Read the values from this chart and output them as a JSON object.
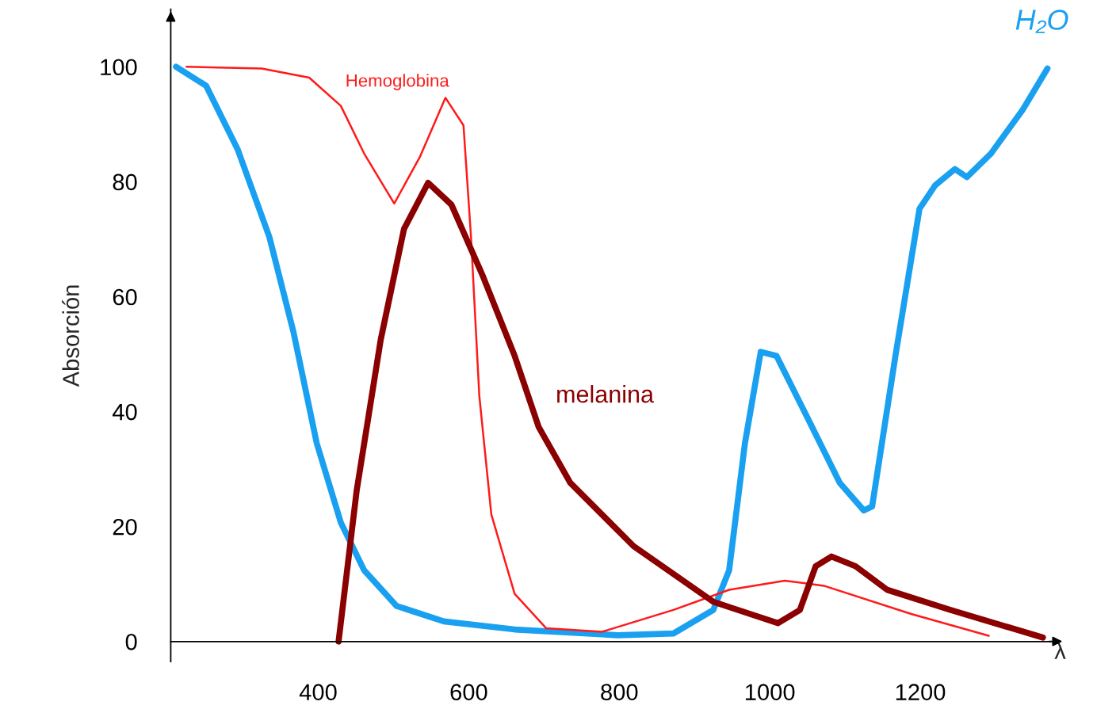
{
  "chart_data": {
    "type": "line",
    "ylabel": "Absorción",
    "xlabel": "λ",
    "xlim": [
      204,
      1380
    ],
    "ylim": [
      -3.5,
      110
    ],
    "xticks": [
      400,
      600,
      800,
      1000,
      1200
    ],
    "yticks": [
      0,
      20,
      40,
      60,
      80,
      100
    ],
    "grid": false,
    "legend": false,
    "marker": "none",
    "line_style": "solid",
    "series": [
      {
        "name": "H₂O",
        "color": "#1aa0f0",
        "x": [
          211,
          251,
          293,
          335,
          367,
          398,
          430,
          461,
          504,
          567,
          661,
          798,
          872,
          925,
          946,
          967,
          988,
          1009,
          1051,
          1093,
          1125,
          1136,
          1167,
          1199,
          1220,
          1246,
          1262,
          1294,
          1336,
          1369
        ],
        "values": [
          100,
          96.7,
          85.6,
          70.4,
          53.9,
          34.5,
          20.7,
          12.4,
          6.2,
          3.5,
          2.1,
          1.1,
          1.4,
          5.5,
          12.4,
          34.5,
          50.4,
          49.7,
          38.7,
          27.6,
          22.8,
          23.5,
          49.7,
          75.3,
          79.4,
          82.2,
          80.8,
          84.9,
          92.5,
          99.7
        ]
      },
      {
        "name": "Hemoglobina",
        "color": "#ff1a1a",
        "x": [
          225,
          325,
          388,
          430,
          461,
          501,
          535,
          569,
          593,
          603,
          614,
          630,
          661,
          703,
          777,
          872,
          946,
          1020,
          1072,
          1188,
          1291
        ],
        "values": [
          100,
          99.7,
          98.1,
          93.2,
          84.9,
          76.2,
          84.3,
          94.6,
          89.8,
          70.4,
          42.8,
          22.1,
          8.3,
          2.3,
          1.7,
          5.5,
          9.0,
          10.6,
          9.7,
          4.8,
          1.0
        ]
      },
      {
        "name": "melanina",
        "color": "#8b0000",
        "x": [
          427,
          451,
          483,
          514,
          546,
          577,
          619,
          661,
          693,
          735,
          819,
          925,
          1011,
          1040,
          1061,
          1082,
          1114,
          1156,
          1240,
          1363
        ],
        "values": [
          0,
          26.2,
          52.5,
          71.8,
          79.8,
          76.0,
          63.5,
          49.7,
          37.3,
          27.6,
          16.6,
          6.9,
          3.2,
          5.5,
          13.1,
          14.8,
          13.1,
          9.0,
          5.5,
          0.7
        ]
      }
    ]
  }
}
